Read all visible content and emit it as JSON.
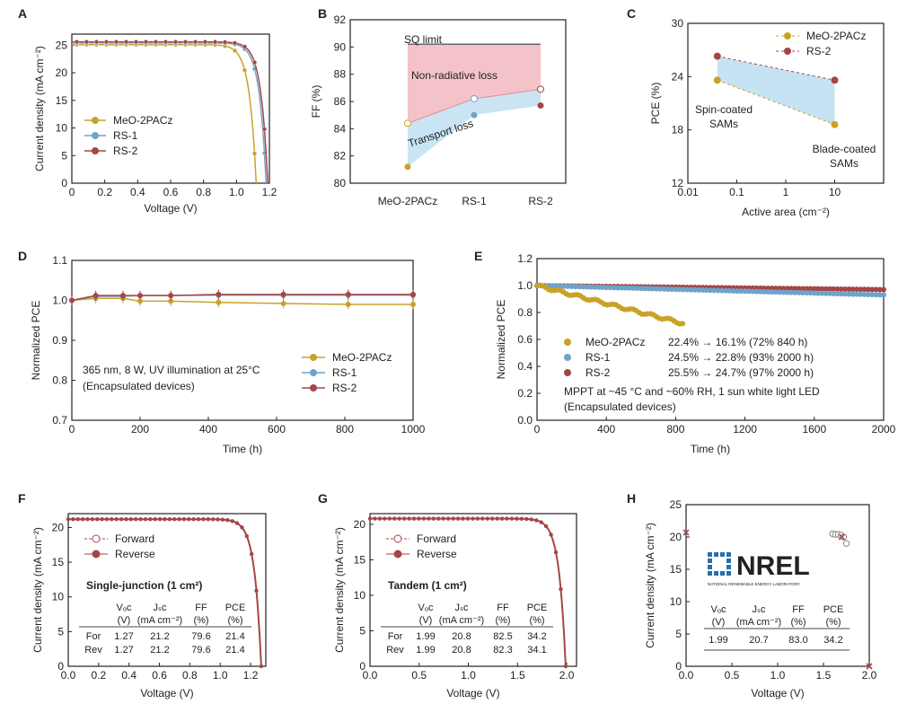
{
  "colors": {
    "yellow": "#c9a227",
    "blue": "#6fa3c8",
    "red": "#a64545",
    "gray": "#777777",
    "pink": "#f2b8bf",
    "lightblue": "#bfe0f2"
  },
  "chart_data": [
    {
      "panel": "A",
      "type": "line",
      "xlabel": "Voltage (V)",
      "ylabel": "Current density (mA cm⁻²)",
      "xlim": [
        0,
        1.2
      ],
      "ylim": [
        0,
        27
      ],
      "xticks": [
        "0",
        "0.2",
        "0.4",
        "0.6",
        "0.8",
        "1.0",
        "1.2"
      ],
      "yticks": [
        "0",
        "5",
        "10",
        "15",
        "20",
        "25"
      ],
      "legend_position": "lower-left",
      "series": [
        {
          "name": "MeO-2PACz",
          "color": "#c9a227",
          "jsc": 25.1,
          "voc": 1.12
        },
        {
          "name": "RS-1",
          "color": "#6fa3c8",
          "jsc": 25.4,
          "voc": 1.18
        },
        {
          "name": "RS-2",
          "color": "#a64545",
          "jsc": 25.6,
          "voc": 1.19
        }
      ]
    },
    {
      "panel": "B",
      "type": "line",
      "ylabel": "FF (%)",
      "categories": [
        "MeO-2PACz",
        "RS-1",
        "RS-2"
      ],
      "ylim": [
        80,
        92
      ],
      "yticks": [
        "80",
        "82",
        "84",
        "86",
        "88",
        "90",
        "92"
      ],
      "sq_limit": 90.2,
      "upper_points": [
        84.4,
        86.2,
        86.9
      ],
      "lower_points": [
        81.2,
        85.0,
        85.7
      ],
      "annotations": {
        "sq": "SQ limit",
        "nonrad": "Non-radiative loss",
        "transport": "Transport loss"
      }
    },
    {
      "panel": "C",
      "type": "scatter",
      "xlabel": "Active area (cm⁻²)",
      "ylabel": "PCE (%)",
      "xscale": "log",
      "xlim": [
        0.01,
        100
      ],
      "ylim": [
        12,
        30
      ],
      "xticks": [
        "0.01",
        "0.1",
        "1",
        "10"
      ],
      "yticks": [
        "12",
        "18",
        "24",
        "30"
      ],
      "legend_position": "top-right",
      "series": [
        {
          "name": "MeO-2PACz",
          "color": "#c9a227",
          "x": [
            0.04,
            10
          ],
          "y": [
            23.6,
            18.6
          ]
        },
        {
          "name": "RS-2",
          "color": "#a64545",
          "x": [
            0.04,
            10
          ],
          "y": [
            26.3,
            23.6
          ]
        }
      ],
      "annotations": {
        "spin1": "Spin-coated",
        "spin2": "SAMs",
        "blade1": "Blade-coated",
        "blade2": "SAMs"
      }
    },
    {
      "panel": "D",
      "type": "line",
      "xlabel": "Time (h)",
      "ylabel": "Normalized PCE",
      "xlim": [
        0,
        1000
      ],
      "ylim": [
        0.7,
        1.1
      ],
      "xticks": [
        "0",
        "200",
        "400",
        "600",
        "800",
        "1000"
      ],
      "yticks": [
        "0.7",
        "0.8",
        "0.9",
        "1.0",
        "1.1"
      ],
      "legend_position": "right",
      "x": [
        0,
        70,
        150,
        200,
        290,
        430,
        620,
        810,
        1000
      ],
      "series": [
        {
          "name": "MeO-2PACz",
          "color": "#c9a227",
          "values": [
            1.0,
            1.005,
            1.005,
            0.998,
            0.998,
            0.995,
            0.992,
            0.99,
            0.99
          ]
        },
        {
          "name": "RS-1",
          "color": "#6fa3c8",
          "values": [
            1.0,
            1.01,
            1.01,
            1.012,
            1.012,
            1.013,
            1.013,
            1.013,
            1.013
          ]
        },
        {
          "name": "RS-2",
          "color": "#a64545",
          "values": [
            1.0,
            1.012,
            1.012,
            1.012,
            1.012,
            1.015,
            1.015,
            1.015,
            1.015
          ]
        }
      ],
      "annotations": {
        "line1": "365 nm, 8 W, UV illumination at 25°C",
        "line2": "(Encapsulated devices)"
      }
    },
    {
      "panel": "E",
      "type": "scatter",
      "xlabel": "Time (h)",
      "ylabel": "Normalized PCE",
      "xlim": [
        0,
        2000
      ],
      "ylim": [
        0,
        1.2
      ],
      "xticks": [
        "0",
        "400",
        "800",
        "1200",
        "1600",
        "2000"
      ],
      "yticks": [
        "0.0",
        "0.2",
        "0.4",
        "0.6",
        "0.8",
        "1.0",
        "1.2"
      ],
      "series": [
        {
          "name": "MeO-2PACz",
          "color": "#c9a227",
          "x": [
            0,
            840
          ],
          "values": [
            1.0,
            0.72
          ],
          "legend": "22.4% → 16.1% (72% 840 h)"
        },
        {
          "name": "RS-1",
          "color": "#6fa3c8",
          "x": [
            0,
            2000
          ],
          "values": [
            1.0,
            0.93
          ],
          "legend": "24.5% → 22.8% (93% 2000 h)"
        },
        {
          "name": "RS-2",
          "color": "#a64545",
          "x": [
            0,
            2000
          ],
          "values": [
            1.0,
            0.97
          ],
          "legend": "25.5% → 24.7% (97% 2000 h)"
        }
      ],
      "annotations": {
        "line1": "MPPT at ~45 °C and ~60% RH, 1 sun white light LED",
        "line2": "(Encapsulated devices)"
      }
    },
    {
      "panel": "F",
      "type": "line",
      "xlabel": "Voltage (V)",
      "ylabel": "Current density (mA cm⁻²)",
      "xlim": [
        0,
        1.3
      ],
      "ylim": [
        0,
        22
      ],
      "xticks": [
        "0.0",
        "0.2",
        "0.4",
        "0.6",
        "0.8",
        "1.0",
        "1.2"
      ],
      "yticks": [
        "0",
        "5",
        "10",
        "15",
        "20"
      ],
      "series": [
        {
          "name": "Forward",
          "color": "#a64545",
          "jsc": 21.2,
          "voc": 1.27
        },
        {
          "name": "Reverse",
          "color": "#a64545",
          "jsc": 21.2,
          "voc": 1.27
        }
      ],
      "table": {
        "title": "Single-junction  (1 cm²)",
        "header1": [
          "",
          "Vₒᴄ",
          "Jₛᴄ",
          "FF",
          "PCE"
        ],
        "header2": [
          "",
          "(V)",
          "(mA cm⁻²)",
          "(%)",
          "(%)"
        ],
        "rows": [
          [
            "For",
            "1.27",
            "21.2",
            "79.6",
            "21.4"
          ],
          [
            "Rev",
            "1.27",
            "21.2",
            "79.6",
            "21.4"
          ]
        ]
      }
    },
    {
      "panel": "G",
      "type": "line",
      "xlabel": "Voltage (V)",
      "ylabel": "Current density (mA cm⁻²)",
      "xlim": [
        0,
        2.1
      ],
      "ylim": [
        0,
        21.5
      ],
      "xticks": [
        "0.0",
        "0.5",
        "1.0",
        "1.5",
        "2.0"
      ],
      "yticks": [
        "0",
        "5",
        "10",
        "15",
        "20"
      ],
      "series": [
        {
          "name": "Forward",
          "color": "#a64545",
          "jsc": 20.8,
          "voc": 1.99
        },
        {
          "name": "Reverse",
          "color": "#a64545",
          "jsc": 20.8,
          "voc": 1.99
        }
      ],
      "table": {
        "title": "Tandem  (1 cm²)",
        "header1": [
          "",
          "Vₒᴄ",
          "Jₛᴄ",
          "FF",
          "PCE"
        ],
        "header2": [
          "",
          "(V)",
          "(mA cm⁻²)",
          "(%)",
          "(%)"
        ],
        "rows": [
          [
            "For",
            "1.99",
            "20.8",
            "82.5",
            "34.2"
          ],
          [
            "Rev",
            "1.99",
            "20.8",
            "82.3",
            "34.1"
          ]
        ]
      }
    },
    {
      "panel": "H",
      "type": "scatter",
      "xlabel": "Voltage (V)",
      "ylabel": "Current density (mA cm⁻²)",
      "xlim": [
        0,
        2.0
      ],
      "ylim": [
        0,
        25
      ],
      "xticks": [
        "0.0",
        "0.5",
        "1.0",
        "1.5",
        "2.0"
      ],
      "yticks": [
        "0",
        "5",
        "10",
        "15",
        "20",
        "25"
      ],
      "points_x": [
        1.6,
        1.63,
        1.66,
        1.69,
        1.72,
        1.75
      ],
      "points_y": [
        20.5,
        20.4,
        20.4,
        20.3,
        20.0,
        19.0
      ],
      "markers": [
        {
          "x": 0.0,
          "y": 20.7
        },
        {
          "x": 2.0,
          "y": 0.0
        },
        {
          "x": 1.7,
          "y": 20.0
        }
      ],
      "logo_text": "NREL",
      "logo_subtext": "NATIONAL RENEWABLE ENERGY LABORATORY",
      "table": {
        "header1": [
          "Vₒᴄ",
          "Jₛᴄ",
          "FF",
          "PCE"
        ],
        "header2": [
          "(V)",
          "(mA cm⁻²)",
          "(%)",
          "(%)"
        ],
        "rows": [
          [
            "1.99",
            "20.7",
            "83.0",
            "34.2"
          ]
        ]
      }
    }
  ]
}
